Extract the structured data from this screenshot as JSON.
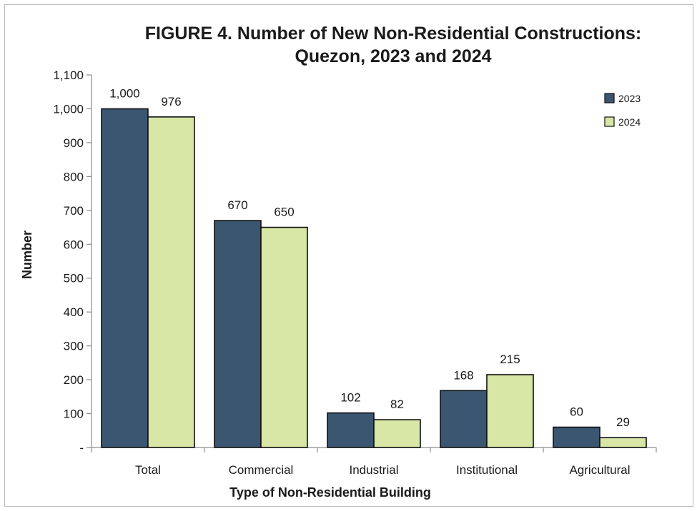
{
  "chart_data": {
    "type": "bar",
    "title_line1": "FIGURE 4. Number of New Non-Residential Constructions:",
    "title_line2": "Quezon, 2023 and 2024",
    "xlabel": "Type of Non-Residential Building",
    "ylabel": "Number",
    "categories": [
      "Total",
      "Commercial",
      "Industrial",
      "Institutional",
      "Agricultural"
    ],
    "series": [
      {
        "name": "2023",
        "color": "#3a5670",
        "values": [
          1000,
          670,
          102,
          168,
          60
        ],
        "labels": [
          "1,000",
          "670",
          "102",
          "168",
          "60"
        ]
      },
      {
        "name": "2024",
        "color": "#d8e6a6",
        "values": [
          976,
          650,
          82,
          215,
          29
        ],
        "labels": [
          "976",
          "650",
          "82",
          "215",
          "29"
        ]
      }
    ],
    "ylim": [
      0,
      1100
    ],
    "yticks": [
      0,
      100,
      200,
      300,
      400,
      500,
      600,
      700,
      800,
      900,
      1000,
      1100
    ],
    "ytick_labels": [
      "-",
      "100",
      "200",
      "300",
      "400",
      "500",
      "600",
      "700",
      "800",
      "900",
      "1,000",
      "1,100"
    ],
    "grid": false,
    "legend_position": "top-right"
  }
}
